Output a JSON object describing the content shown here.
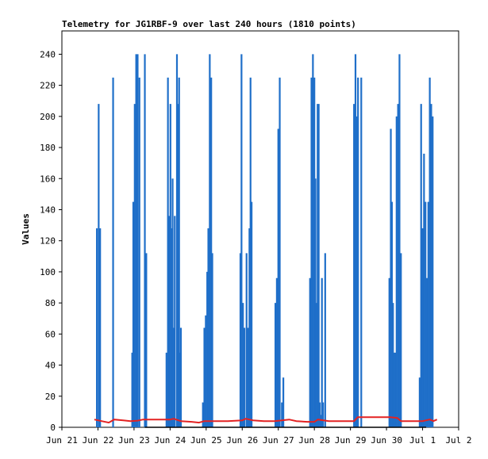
{
  "chart_data": {
    "type": "line",
    "title": "Telemetry for JG1RBF-9 over last 240 hours (1810 points)",
    "xlabel": "",
    "ylabel": "Values",
    "ylim": [
      0,
      255
    ],
    "yticks": [
      0,
      20,
      40,
      60,
      80,
      100,
      120,
      140,
      160,
      180,
      200,
      220,
      240
    ],
    "xlim_days": [
      0,
      11
    ],
    "xticks": [
      "Jun 21",
      "Jun 22",
      "Jun 23",
      "Jun 24",
      "Jun 25",
      "Jun 26",
      "Jun 27",
      "Jun 28",
      "Jun 29",
      "Jun 30",
      "Jul 1",
      "Jul 2"
    ],
    "colors": {
      "blue_series": "#1f6fc9",
      "red_series": "#e32222",
      "axis": "#000000"
    },
    "blue_spikes": [
      {
        "x": 0.97,
        "y": 128
      },
      {
        "x": 1.02,
        "y": 208
      },
      {
        "x": 1.06,
        "y": 128
      },
      {
        "x": 1.42,
        "y": 225
      },
      {
        "x": 1.95,
        "y": 48
      },
      {
        "x": 1.98,
        "y": 145
      },
      {
        "x": 2.02,
        "y": 208
      },
      {
        "x": 2.06,
        "y": 240
      },
      {
        "x": 2.1,
        "y": 240
      },
      {
        "x": 2.15,
        "y": 225
      },
      {
        "x": 2.3,
        "y": 240
      },
      {
        "x": 2.34,
        "y": 112
      },
      {
        "x": 2.9,
        "y": 48
      },
      {
        "x": 2.94,
        "y": 225
      },
      {
        "x": 2.98,
        "y": 136
      },
      {
        "x": 3.01,
        "y": 208
      },
      {
        "x": 3.04,
        "y": 128
      },
      {
        "x": 3.07,
        "y": 160
      },
      {
        "x": 3.1,
        "y": 64
      },
      {
        "x": 3.13,
        "y": 136
      },
      {
        "x": 3.19,
        "y": 240
      },
      {
        "x": 3.22,
        "y": 208
      },
      {
        "x": 3.25,
        "y": 225
      },
      {
        "x": 3.28,
        "y": 48
      },
      {
        "x": 3.3,
        "y": 64
      },
      {
        "x": 3.91,
        "y": 16
      },
      {
        "x": 3.95,
        "y": 64
      },
      {
        "x": 3.99,
        "y": 72
      },
      {
        "x": 4.03,
        "y": 100
      },
      {
        "x": 4.06,
        "y": 128
      },
      {
        "x": 4.1,
        "y": 240
      },
      {
        "x": 4.14,
        "y": 225
      },
      {
        "x": 4.17,
        "y": 112
      },
      {
        "x": 4.95,
        "y": 112
      },
      {
        "x": 4.98,
        "y": 240
      },
      {
        "x": 5.02,
        "y": 80
      },
      {
        "x": 5.06,
        "y": 64
      },
      {
        "x": 5.12,
        "y": 112
      },
      {
        "x": 5.16,
        "y": 64
      },
      {
        "x": 5.2,
        "y": 128
      },
      {
        "x": 5.23,
        "y": 225
      },
      {
        "x": 5.26,
        "y": 145
      },
      {
        "x": 5.92,
        "y": 80
      },
      {
        "x": 5.96,
        "y": 96
      },
      {
        "x": 6.0,
        "y": 192
      },
      {
        "x": 6.04,
        "y": 225
      },
      {
        "x": 6.1,
        "y": 16
      },
      {
        "x": 6.14,
        "y": 32
      },
      {
        "x": 6.88,
        "y": 96
      },
      {
        "x": 6.92,
        "y": 225
      },
      {
        "x": 6.96,
        "y": 240
      },
      {
        "x": 7.0,
        "y": 225
      },
      {
        "x": 7.03,
        "y": 160
      },
      {
        "x": 7.06,
        "y": 80
      },
      {
        "x": 7.09,
        "y": 208
      },
      {
        "x": 7.12,
        "y": 208
      },
      {
        "x": 7.15,
        "y": 16
      },
      {
        "x": 7.18,
        "y": 8
      },
      {
        "x": 7.21,
        "y": 96
      },
      {
        "x": 7.24,
        "y": 16
      },
      {
        "x": 7.3,
        "y": 112
      },
      {
        "x": 8.1,
        "y": 208
      },
      {
        "x": 8.14,
        "y": 240
      },
      {
        "x": 8.17,
        "y": 200
      },
      {
        "x": 8.21,
        "y": 225
      },
      {
        "x": 8.3,
        "y": 225
      },
      {
        "x": 9.08,
        "y": 96
      },
      {
        "x": 9.12,
        "y": 192
      },
      {
        "x": 9.15,
        "y": 145
      },
      {
        "x": 9.18,
        "y": 80
      },
      {
        "x": 9.21,
        "y": 48
      },
      {
        "x": 9.24,
        "y": 48
      },
      {
        "x": 9.28,
        "y": 200
      },
      {
        "x": 9.32,
        "y": 208
      },
      {
        "x": 9.36,
        "y": 240
      },
      {
        "x": 9.4,
        "y": 112
      },
      {
        "x": 9.92,
        "y": 32
      },
      {
        "x": 9.96,
        "y": 208
      },
      {
        "x": 10.0,
        "y": 128
      },
      {
        "x": 10.04,
        "y": 176
      },
      {
        "x": 10.08,
        "y": 145
      },
      {
        "x": 10.12,
        "y": 96
      },
      {
        "x": 10.16,
        "y": 145
      },
      {
        "x": 10.2,
        "y": 225
      },
      {
        "x": 10.24,
        "y": 208
      },
      {
        "x": 10.28,
        "y": 200
      }
    ],
    "red_series": [
      [
        0.9,
        5
      ],
      [
        1.1,
        4
      ],
      [
        1.3,
        3
      ],
      [
        1.45,
        5
      ],
      [
        1.7,
        4.5
      ],
      [
        1.9,
        4
      ],
      [
        2.1,
        4.3
      ],
      [
        2.25,
        5
      ],
      [
        2.8,
        5
      ],
      [
        3.0,
        5
      ],
      [
        3.1,
        5.5
      ],
      [
        3.3,
        4
      ],
      [
        3.6,
        3.5
      ],
      [
        3.8,
        3
      ],
      [
        3.95,
        4
      ],
      [
        4.1,
        4
      ],
      [
        4.6,
        4
      ],
      [
        5.0,
        4.5
      ],
      [
        5.1,
        5.5
      ],
      [
        5.3,
        4.5
      ],
      [
        5.6,
        4
      ],
      [
        5.9,
        4
      ],
      [
        6.1,
        4.5
      ],
      [
        6.3,
        5
      ],
      [
        6.5,
        4
      ],
      [
        6.8,
        3.5
      ],
      [
        7.0,
        3.5
      ],
      [
        7.1,
        5
      ],
      [
        7.4,
        4
      ],
      [
        7.6,
        4
      ],
      [
        7.9,
        4
      ],
      [
        8.1,
        4
      ],
      [
        8.2,
        6.5
      ],
      [
        8.4,
        6.5
      ],
      [
        8.8,
        6.5
      ],
      [
        9.1,
        6.5
      ],
      [
        9.3,
        6
      ],
      [
        9.4,
        4
      ],
      [
        9.8,
        4
      ],
      [
        10.0,
        4
      ],
      [
        10.1,
        4.5
      ],
      [
        10.2,
        5
      ],
      [
        10.3,
        4
      ],
      [
        10.4,
        5
      ]
    ],
    "black_baseline": [
      [
        2.3,
        0
      ],
      [
        10.1,
        0
      ]
    ]
  }
}
